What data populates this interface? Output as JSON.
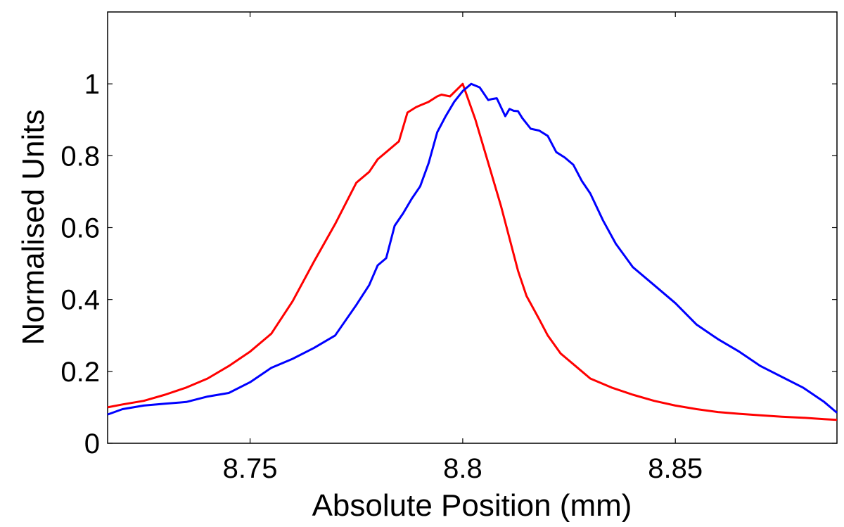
{
  "chart_data": {
    "type": "line",
    "title": "",
    "xlabel": "Absolute Position (mm)",
    "ylabel": "Normalised Units",
    "xlim": [
      8.7165,
      8.888
    ],
    "ylim": [
      0,
      1.2
    ],
    "x_ticks": [
      8.75,
      8.8,
      8.85
    ],
    "x_tick_labels": [
      "8.75",
      "8.8",
      "8.85"
    ],
    "y_ticks": [
      0,
      0.2,
      0.4,
      0.6,
      0.8,
      1
    ],
    "y_tick_labels": [
      "0",
      "0.2",
      "0.4",
      "0.6",
      "0.8",
      "1"
    ],
    "grid": false,
    "legend": "none",
    "series": [
      {
        "name": "red",
        "color": "#ff0000",
        "x": [
          8.7165,
          8.72,
          8.725,
          8.73,
          8.735,
          8.74,
          8.745,
          8.75,
          8.755,
          8.76,
          8.765,
          8.77,
          8.775,
          8.778,
          8.78,
          8.782,
          8.785,
          8.787,
          8.789,
          8.79,
          8.792,
          8.794,
          8.795,
          8.797,
          8.8,
          8.803,
          8.806,
          8.809,
          8.811,
          8.813,
          8.815,
          8.818,
          8.82,
          8.823,
          8.827,
          8.83,
          8.835,
          8.84,
          8.845,
          8.85,
          8.855,
          8.86,
          8.865,
          8.87,
          8.875,
          8.88,
          8.885,
          8.888
        ],
        "y": [
          0.1,
          0.108,
          0.118,
          0.135,
          0.155,
          0.18,
          0.215,
          0.255,
          0.305,
          0.395,
          0.505,
          0.61,
          0.725,
          0.755,
          0.79,
          0.81,
          0.84,
          0.92,
          0.935,
          0.94,
          0.95,
          0.965,
          0.97,
          0.965,
          1.0,
          0.9,
          0.78,
          0.66,
          0.57,
          0.48,
          0.41,
          0.345,
          0.3,
          0.25,
          0.21,
          0.18,
          0.155,
          0.135,
          0.118,
          0.105,
          0.095,
          0.087,
          0.082,
          0.078,
          0.074,
          0.071,
          0.067,
          0.065
        ]
      },
      {
        "name": "blue",
        "color": "#0000ff",
        "x": [
          8.7165,
          8.72,
          8.725,
          8.73,
          8.735,
          8.74,
          8.745,
          8.75,
          8.755,
          8.76,
          8.765,
          8.77,
          8.775,
          8.778,
          8.78,
          8.782,
          8.784,
          8.786,
          8.788,
          8.79,
          8.792,
          8.794,
          8.796,
          8.798,
          8.8,
          8.802,
          8.804,
          8.806,
          8.807,
          8.808,
          8.81,
          8.811,
          8.812,
          8.813,
          8.814,
          8.816,
          8.818,
          8.82,
          8.822,
          8.824,
          8.826,
          8.828,
          8.83,
          8.833,
          8.836,
          8.84,
          8.845,
          8.85,
          8.855,
          8.86,
          8.865,
          8.87,
          8.875,
          8.88,
          8.885,
          8.888
        ],
        "y": [
          0.08,
          0.095,
          0.105,
          0.11,
          0.115,
          0.13,
          0.14,
          0.17,
          0.21,
          0.235,
          0.265,
          0.3,
          0.385,
          0.44,
          0.495,
          0.515,
          0.605,
          0.64,
          0.68,
          0.715,
          0.78,
          0.865,
          0.91,
          0.95,
          0.98,
          1.0,
          0.99,
          0.955,
          0.958,
          0.96,
          0.91,
          0.93,
          0.925,
          0.924,
          0.905,
          0.875,
          0.87,
          0.855,
          0.81,
          0.795,
          0.775,
          0.73,
          0.695,
          0.62,
          0.555,
          0.49,
          0.44,
          0.39,
          0.33,
          0.29,
          0.255,
          0.215,
          0.185,
          0.155,
          0.115,
          0.085
        ]
      }
    ]
  }
}
